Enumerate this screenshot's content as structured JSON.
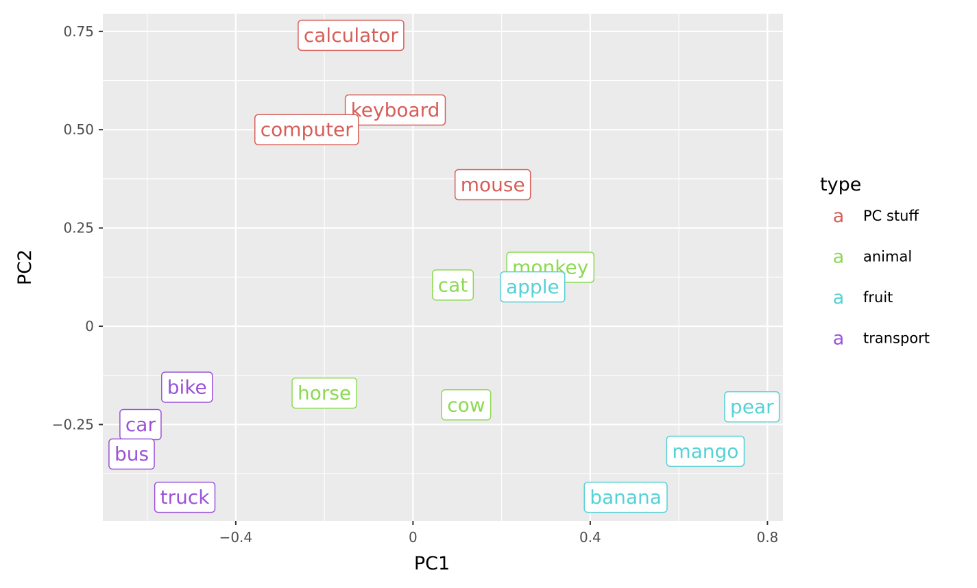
{
  "chart_data": {
    "type": "scatter",
    "xlabel": "PC1",
    "ylabel": "PC2",
    "xlim": [
      -0.7,
      0.835
    ],
    "ylim": [
      -0.495,
      0.795
    ],
    "x_ticks": [
      -0.4,
      0,
      0.4,
      0.8
    ],
    "x_tick_labels": [
      "−0.4",
      "0",
      "0.4",
      "0.8"
    ],
    "y_ticks": [
      -0.25,
      0,
      0.25,
      0.5,
      0.75
    ],
    "y_tick_labels": [
      "−0.25",
      "0",
      "0.25",
      "0.50",
      "0.75"
    ],
    "grid": true,
    "legend": {
      "title": "type",
      "placement": "right",
      "key_glyph": "a",
      "entries": [
        {
          "name": "PC stuff",
          "color": "#d65e58"
        },
        {
          "name": "animal",
          "color": "#8cd952"
        },
        {
          "name": "fruit",
          "color": "#56d1d6"
        },
        {
          "name": "transport",
          "color": "#9b52d9"
        }
      ]
    },
    "points": [
      {
        "label": "calculator",
        "type": "PC stuff",
        "x": -0.14,
        "y": 0.74
      },
      {
        "label": "keyboard",
        "type": "PC stuff",
        "x": -0.04,
        "y": 0.55
      },
      {
        "label": "computer",
        "type": "PC stuff",
        "x": -0.24,
        "y": 0.5
      },
      {
        "label": "mouse",
        "type": "PC stuff",
        "x": 0.18,
        "y": 0.36
      },
      {
        "label": "monkey",
        "type": "animal",
        "x": 0.31,
        "y": 0.15
      },
      {
        "label": "cat",
        "type": "animal",
        "x": 0.09,
        "y": 0.105
      },
      {
        "label": "horse",
        "type": "animal",
        "x": -0.2,
        "y": -0.17
      },
      {
        "label": "cow",
        "type": "animal",
        "x": 0.12,
        "y": -0.2
      },
      {
        "label": "apple",
        "type": "fruit",
        "x": 0.27,
        "y": 0.1
      },
      {
        "label": "pear",
        "type": "fruit",
        "x": 0.765,
        "y": -0.205
      },
      {
        "label": "mango",
        "type": "fruit",
        "x": 0.66,
        "y": -0.318
      },
      {
        "label": "banana",
        "type": "fruit",
        "x": 0.48,
        "y": -0.435
      },
      {
        "label": "bike",
        "type": "transport",
        "x": -0.51,
        "y": -0.155
      },
      {
        "label": "car",
        "type": "transport",
        "x": -0.615,
        "y": -0.25
      },
      {
        "label": "bus",
        "type": "transport",
        "x": -0.635,
        "y": -0.325
      },
      {
        "label": "truck",
        "type": "transport",
        "x": -0.515,
        "y": -0.435
      }
    ]
  }
}
